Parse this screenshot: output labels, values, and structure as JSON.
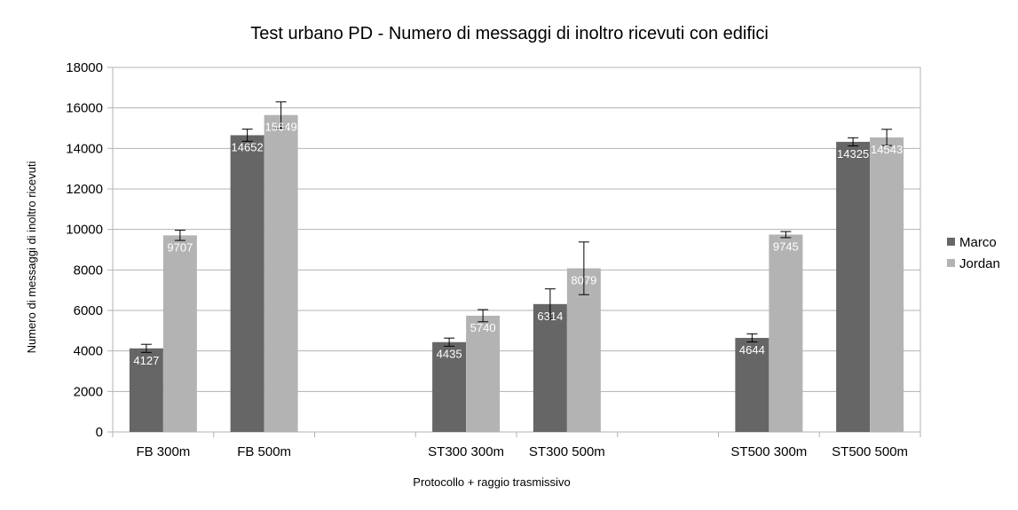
{
  "chart_data": {
    "type": "bar",
    "title": "Test urbano PD - Numero di messaggi di inoltro ricevuti con edifici",
    "xlabel": "Protocollo + raggio trasmissivo",
    "ylabel": "Numero di messaggi di inoltro ricevuti",
    "ylim": [
      0,
      18000
    ],
    "yticks": [
      0,
      2000,
      4000,
      6000,
      8000,
      10000,
      12000,
      14000,
      16000,
      18000
    ],
    "grid": true,
    "legend_position": "right",
    "categories": [
      "FB 300m",
      "FB 500m",
      "",
      "ST300 300m",
      "ST300 500m",
      "",
      "ST500 300m",
      "ST500 500m"
    ],
    "series": [
      {
        "name": "Marco",
        "color": "#666666",
        "values": [
          4127,
          14652,
          null,
          4435,
          6314,
          null,
          4644,
          14325
        ],
        "errors": [
          200,
          300,
          null,
          200,
          750,
          null,
          200,
          200
        ]
      },
      {
        "name": "Jordan",
        "color": "#b3b3b3",
        "values": [
          9707,
          15649,
          null,
          5740,
          8079,
          null,
          9745,
          14543
        ],
        "errors": [
          250,
          650,
          null,
          300,
          1300,
          null,
          150,
          400
        ]
      }
    ]
  }
}
